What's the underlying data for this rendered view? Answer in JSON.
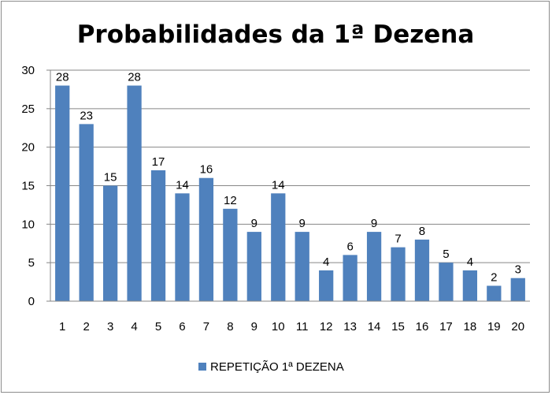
{
  "chart_data": {
    "type": "bar",
    "title": "Probabilidades da 1ª Dezena",
    "xlabel": "",
    "ylabel": "",
    "categories": [
      "1",
      "2",
      "3",
      "4",
      "5",
      "6",
      "7",
      "8",
      "9",
      "10",
      "11",
      "12",
      "13",
      "14",
      "15",
      "16",
      "17",
      "18",
      "19",
      "20"
    ],
    "series": [
      {
        "name": "REPETIÇÃO 1ª DEZENA",
        "values": [
          28,
          23,
          15,
          28,
          17,
          14,
          16,
          12,
          9,
          14,
          9,
          4,
          6,
          9,
          7,
          8,
          5,
          4,
          2,
          3
        ],
        "color": "#4f81bd"
      }
    ],
    "ylim": [
      0,
      30
    ],
    "yticks": [
      "0",
      "5",
      "10",
      "15",
      "20",
      "25",
      "30"
    ],
    "grid": true,
    "data_labels": true,
    "legend_position": "bottom"
  }
}
